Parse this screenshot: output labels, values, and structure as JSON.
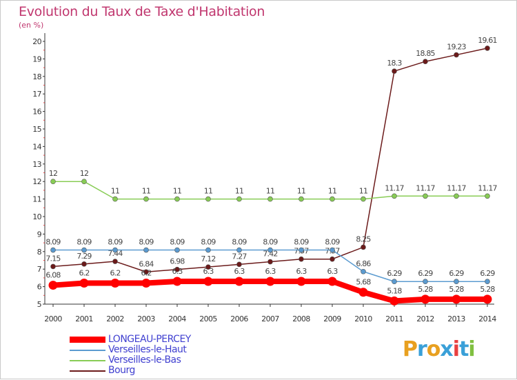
{
  "header": {
    "title": "Evolution du Taux de Taxe d'Habitation",
    "unit": "(en %)"
  },
  "logo": {
    "letters": [
      "P",
      "r",
      "o",
      "x",
      "i",
      "t",
      "i"
    ],
    "colors": [
      "#e8a020",
      "#3aa0d8",
      "#e8a020",
      "#3aa0d8",
      "#e84040",
      "#3aa0d8",
      "#80c040"
    ]
  },
  "chart_data": {
    "type": "line",
    "x": [
      "2000",
      "2001",
      "2002",
      "2003",
      "2004",
      "2005",
      "2006",
      "2007",
      "2008",
      "2009",
      "2010",
      "2011",
      "2012",
      "2013",
      "2014"
    ],
    "ylim": [
      5,
      20
    ],
    "yticks": [
      "5",
      "6",
      "7",
      "8",
      "9",
      "10",
      "11",
      "12",
      "13",
      "14",
      "15",
      "16",
      "17",
      "18",
      "19",
      "20"
    ],
    "grid": false,
    "legend_position": "bottom-left",
    "series": [
      {
        "name": "Bourg",
        "color": "#6b1a1a",
        "values": [
          7.15,
          7.29,
          7.44,
          6.84,
          6.98,
          7.12,
          7.27,
          7.42,
          7.57,
          7.57,
          8.25,
          18.3,
          18.85,
          19.23,
          19.61
        ],
        "labels": [
          "7.15",
          "7.29",
          "7.44",
          "6.84",
          "6.98",
          "7.12",
          "7.27",
          "7.42",
          "7.57",
          "7.57",
          "8.25",
          "18.3",
          "18.85",
          "19.23",
          "19.61"
        ]
      },
      {
        "name": "Verseilles-le-Bas",
        "color": "#88cc55",
        "values": [
          12,
          12,
          11,
          11,
          11,
          11,
          11,
          11,
          11,
          11,
          11,
          11.17,
          11.17,
          11.17,
          11.17
        ],
        "labels": [
          "12",
          "12",
          "11",
          "11",
          "11",
          "11",
          "11",
          "11",
          "11",
          "11",
          "11",
          "11.17",
          "11.17",
          "11.17",
          "11.17"
        ]
      },
      {
        "name": "Verseilles-le-Haut",
        "color": "#5b9bd0",
        "values": [
          8.09,
          8.09,
          8.09,
          8.09,
          8.09,
          8.09,
          8.09,
          8.09,
          8.09,
          8.09,
          6.86,
          6.29,
          6.29,
          6.29,
          6.29
        ],
        "labels": [
          "8.09",
          "8.09",
          "8.09",
          "8.09",
          "8.09",
          "8.09",
          "8.09",
          "8.09",
          "8.09",
          "8.09",
          "6.86",
          "6.29",
          "6.29",
          "6.29",
          "6.29"
        ]
      },
      {
        "name": "LONGEAU-PERCEY",
        "color": "#ff0000",
        "values": [
          6.08,
          6.2,
          6.2,
          6.2,
          6.3,
          6.3,
          6.3,
          6.3,
          6.3,
          6.3,
          5.68,
          5.18,
          5.28,
          5.28,
          5.28
        ],
        "labels": [
          "6.08",
          "6.2",
          "6.2",
          "6.2",
          "6.3",
          "6.3",
          "6.3",
          "6.3",
          "6.3",
          "6.3",
          "5.68",
          "5.18",
          "5.28",
          "5.28",
          "5.28"
        ]
      }
    ],
    "legend_order": [
      "LONGEAU-PERCEY",
      "Verseilles-le-Haut",
      "Verseilles-le-Bas",
      "Bourg"
    ]
  }
}
